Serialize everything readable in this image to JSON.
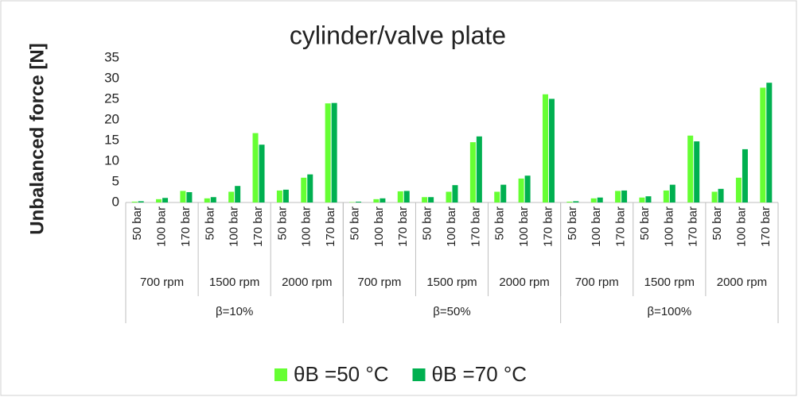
{
  "chart_data": {
    "type": "bar",
    "title": "cylinder/valve plate",
    "y_label": "Unbalanced force [N]",
    "categories": [
      "50 bar",
      "100 bar",
      "170 bar",
      "50 bar",
      "100 bar",
      "170 bar",
      "50 bar",
      "100 bar",
      "170 bar",
      "50 bar",
      "100 bar",
      "170 bar",
      "50 bar",
      "100 bar",
      "170 bar",
      "50 bar",
      "100 bar",
      "170 bar",
      "50 bar",
      "100 bar",
      "170 bar",
      "50 bar",
      "100 bar",
      "170 bar",
      "50 bar",
      "100 bar",
      "170 bar"
    ],
    "groups": [
      "700 rpm",
      "1500 rpm",
      "2000 rpm",
      "700 rpm",
      "1500 rpm",
      "2000 rpm",
      "700 rpm",
      "1500 rpm",
      "2000 rpm"
    ],
    "supergroups": [
      "β=10%",
      "β=50%",
      "β=100%"
    ],
    "series": [
      {
        "name": "θB =50 °C",
        "color": "#66ff33",
        "values": [
          0.2,
          0.8,
          2.8,
          1.0,
          2.6,
          16.8,
          2.9,
          6.0,
          24.0,
          0.1,
          0.8,
          2.7,
          1.3,
          2.6,
          14.6,
          2.6,
          5.8,
          26.2,
          0.2,
          1.0,
          2.8,
          1.2,
          2.9,
          16.2,
          2.6,
          6.0,
          27.8
        ]
      },
      {
        "name": "θB =70 °C",
        "color": "#00b050",
        "values": [
          0.3,
          1.1,
          2.5,
          1.3,
          4.0,
          14.0,
          3.1,
          6.8,
          24.1,
          0.2,
          1.0,
          2.8,
          1.3,
          4.2,
          16.0,
          4.3,
          6.5,
          25.1,
          0.3,
          1.2,
          2.9,
          1.5,
          4.3,
          14.8,
          3.3,
          12.9,
          29.0
        ]
      }
    ],
    "ylim": [
      0,
      35
    ],
    "yticks": [
      0,
      5,
      10,
      15,
      20,
      25,
      30,
      35
    ],
    "legend": "bottom"
  }
}
